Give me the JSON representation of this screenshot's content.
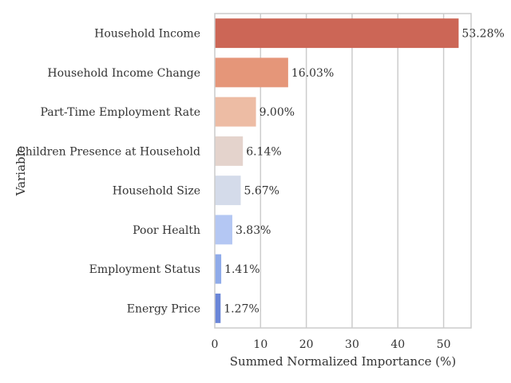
{
  "chart_data": {
    "type": "bar",
    "orientation": "horizontal",
    "categories": [
      "Household Income",
      "Household Income Change",
      "Part-Time Employment Rate",
      "Children Presence at Household",
      "Household Size",
      "Poor Health",
      "Employment Status",
      "Energy Price"
    ],
    "values": [
      53.28,
      16.03,
      9.0,
      6.14,
      5.67,
      3.83,
      1.41,
      1.27
    ],
    "value_labels": [
      "53.28%",
      "16.03%",
      "9.00%",
      "6.14%",
      "5.67%",
      "3.83%",
      "1.41%",
      "1.27%"
    ],
    "colors": [
      "#cc6656",
      "#e59679",
      "#edbca4",
      "#e4d3cc",
      "#d4dbea",
      "#b4c7f3",
      "#8fabea",
      "#6a86d8"
    ],
    "xlabel": "Summed Normalized Importance (%)",
    "ylabel": "Variable",
    "xlim": [
      0,
      56
    ],
    "xticks": [
      0,
      10,
      20,
      30,
      40,
      50
    ],
    "grid": "vertical",
    "frame_color": "#cccccc",
    "grid_color": "#cccccc"
  }
}
